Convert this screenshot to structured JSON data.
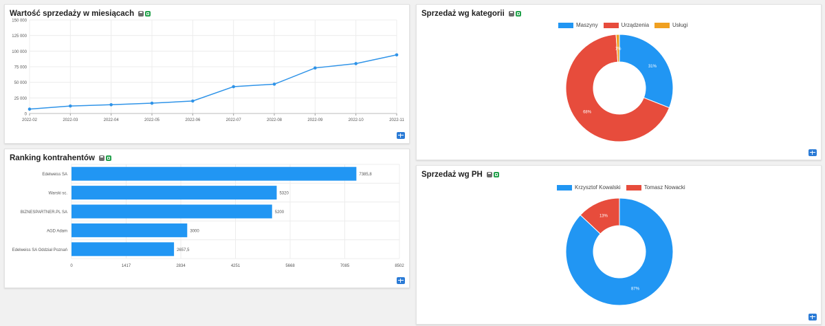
{
  "panels": {
    "monthly": {
      "title": "Wartość sprzedaży w miesiącach",
      "chart_data": {
        "type": "line",
        "title": "Wartość sprzedaży w miesiącach",
        "x": [
          "2022-02",
          "2022-03",
          "2022-04",
          "2022-05",
          "2022-06",
          "2022-07",
          "2022-08",
          "2022-09",
          "2022-10",
          "2022-11"
        ],
        "values": [
          7000,
          12000,
          14000,
          16500,
          20000,
          43000,
          47000,
          73000,
          80000,
          94000
        ],
        "yticks": [
          "0",
          "25 000",
          "50 000",
          "75 000",
          "100 000",
          "125 000",
          "150 000"
        ],
        "ylim": [
          0,
          150000
        ],
        "grid": true,
        "color": "#2e93e8"
      }
    },
    "ranking": {
      "title": "Ranking kontrahentów",
      "chart_data": {
        "type": "bar",
        "orientation": "horizontal",
        "title": "Ranking kontrahentów",
        "categories": [
          "Edelweiss SA",
          "Warski sc.",
          "BIZNESPARTNER.PL SA",
          "AGD Adam",
          "Edelweiss SA Oddział Poznań"
        ],
        "values": [
          7385.8,
          5320,
          5200,
          3000,
          2657.5
        ],
        "value_labels": [
          "7385,8",
          "5320",
          "5200",
          "3000",
          "2657,5"
        ],
        "xticks": [
          "0",
          "1417",
          "2834",
          "4251",
          "5668",
          "7085",
          "8502"
        ],
        "xlim": [
          0,
          8502
        ],
        "grid": true,
        "color": "#2196f3"
      }
    },
    "category": {
      "title": "Sprzedaż wg kategorii",
      "chart_data": {
        "type": "pie",
        "donut": true,
        "title": "Sprzedaż wg kategorii",
        "legend_position": "top",
        "slices": [
          {
            "name": "Maszyny",
            "value": 31,
            "label": "31%",
            "color": "#2196f3"
          },
          {
            "name": "Urządzenia",
            "value": 68,
            "label": "68%",
            "color": "#e74c3c"
          },
          {
            "name": "Usługi",
            "value": 1,
            "label": "1%",
            "color": "#f0a020"
          }
        ]
      }
    },
    "ph": {
      "title": "Sprzedaż wg PH",
      "chart_data": {
        "type": "pie",
        "donut": true,
        "title": "Sprzedaż wg PH",
        "legend_position": "top",
        "slices": [
          {
            "name": "Krzysztof Kowalski",
            "value": 87,
            "label": "87%",
            "color": "#2196f3"
          },
          {
            "name": "Tomasz Nowacki",
            "value": 13,
            "label": "13%",
            "color": "#e74c3c"
          }
        ]
      }
    }
  },
  "icons": {
    "print": "print-icon",
    "excel": "excel-icon",
    "table": "table-icon"
  }
}
